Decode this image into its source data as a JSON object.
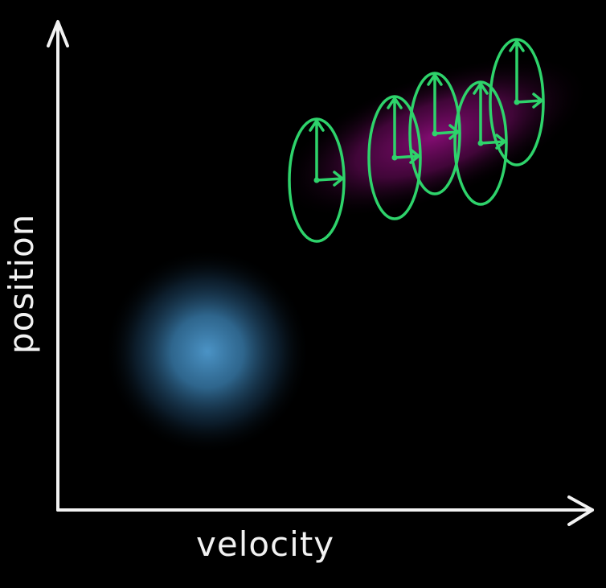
{
  "labels": {
    "x_axis": "velocity",
    "y_axis": "position"
  },
  "colors": {
    "background": "#000000",
    "axis": "#f2f2f2",
    "blob_blue": "#3f86b8",
    "blob_magenta": "#7a0a6a",
    "clock": "#2ed36b"
  },
  "clocks": {
    "count": 5,
    "icon": "clock-icon"
  }
}
